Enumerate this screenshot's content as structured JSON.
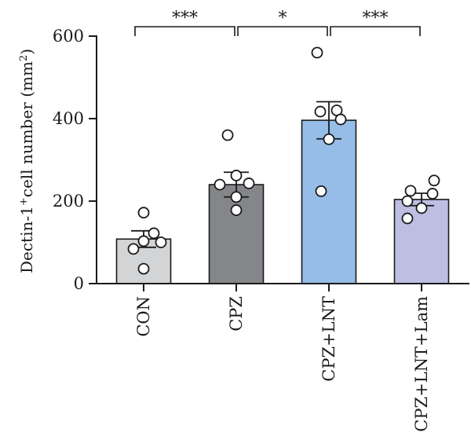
{
  "chart_data": {
    "type": "bar",
    "ylabel_main": "Dectin-1",
    "ylabel_sup1": "+",
    "ylabel_mid": "cell number (mm",
    "ylabel_sup2": "2",
    "ylabel_end": ")",
    "ylim": [
      0,
      600
    ],
    "yticks": [
      0,
      200,
      400,
      600
    ],
    "yticks_labels": [
      "0",
      "200",
      "400",
      "600"
    ],
    "categories": [
      "CON",
      "CPZ",
      "CPZ+LNT",
      "CPZ+LNT+Lam"
    ],
    "colors": [
      "#d3d4d6",
      "#848689",
      "#95bde7",
      "#bebde2"
    ],
    "values": [
      108,
      240,
      396,
      204
    ],
    "errors": [
      20,
      30,
      45,
      15
    ],
    "points": [
      [
        172,
        122,
        103,
        100,
        84,
        36
      ],
      [
        360,
        262,
        243,
        240,
        210,
        178
      ],
      [
        560,
        420,
        417,
        398,
        350,
        224
      ],
      [
        250,
        225,
        218,
        200,
        183,
        158
      ]
    ],
    "significance": [
      {
        "from": 0,
        "to": 1,
        "label": "***"
      },
      {
        "from": 1,
        "to": 2,
        "label": "*"
      },
      {
        "from": 2,
        "to": 3,
        "label": "***"
      }
    ]
  }
}
